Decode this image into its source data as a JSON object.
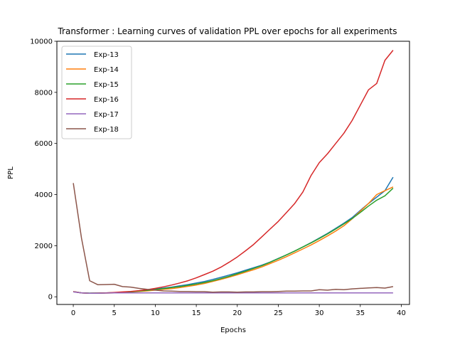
{
  "chart_data": {
    "type": "line",
    "title": "Transformer : Learning curves of validation PPL over epochs for all experiments",
    "xlabel": "Epochs",
    "ylabel": "PPL",
    "xlim": [
      -2,
      41
    ],
    "ylim": [
      -300,
      10000
    ],
    "xticks": [
      0,
      5,
      10,
      15,
      20,
      25,
      30,
      35,
      40
    ],
    "yticks": [
      0,
      2000,
      4000,
      6000,
      8000,
      10000
    ],
    "grid": false,
    "legend_position": "upper-left",
    "x": [
      0,
      1,
      2,
      3,
      4,
      5,
      6,
      7,
      8,
      9,
      10,
      11,
      12,
      13,
      14,
      15,
      16,
      17,
      18,
      19,
      20,
      21,
      22,
      23,
      24,
      25,
      26,
      27,
      28,
      29,
      30,
      31,
      32,
      33,
      34,
      35,
      36,
      37,
      38,
      39
    ],
    "series": [
      {
        "name": "Exp-13",
        "color": "#1f77b4",
        "values": [
          200,
          150,
          140,
          145,
          150,
          160,
          180,
          200,
          230,
          260,
          300,
          340,
          380,
          430,
          480,
          540,
          600,
          680,
          760,
          850,
          940,
          1040,
          1140,
          1240,
          1360,
          1500,
          1640,
          1790,
          1950,
          2120,
          2300,
          2480,
          2680,
          2880,
          3100,
          3380,
          3650,
          3900,
          4150,
          4680
        ]
      },
      {
        "name": "Exp-14",
        "color": "#ff7f0e",
        "values": [
          200,
          150,
          140,
          140,
          145,
          150,
          170,
          190,
          210,
          230,
          260,
          290,
          320,
          360,
          410,
          460,
          520,
          600,
          680,
          770,
          860,
          960,
          1060,
          1170,
          1300,
          1430,
          1570,
          1720,
          1870,
          2030,
          2200,
          2380,
          2570,
          2780,
          3050,
          3350,
          3650,
          4000,
          4150,
          4300
        ]
      },
      {
        "name": "Exp-15",
        "color": "#2ca02c",
        "values": [
          200,
          155,
          145,
          145,
          150,
          160,
          175,
          195,
          220,
          250,
          285,
          320,
          360,
          400,
          450,
          500,
          560,
          630,
          710,
          800,
          900,
          1000,
          1110,
          1220,
          1350,
          1490,
          1640,
          1790,
          1950,
          2110,
          2280,
          2460,
          2650,
          2850,
          3060,
          3300,
          3550,
          3780,
          3950,
          4250
        ]
      },
      {
        "name": "Exp-16",
        "color": "#d62728",
        "values": [
          200,
          150,
          140,
          145,
          155,
          170,
          190,
          210,
          240,
          280,
          330,
          390,
          460,
          540,
          630,
          740,
          870,
          1000,
          1160,
          1350,
          1560,
          1800,
          2050,
          2350,
          2650,
          2950,
          3300,
          3650,
          4100,
          4750,
          5250,
          5600,
          6000,
          6400,
          6900,
          7500,
          8100,
          8350,
          9250,
          9650
        ]
      },
      {
        "name": "Exp-17",
        "color": "#9467bd",
        "values": [
          190,
          150,
          140,
          140,
          145,
          150,
          150,
          150,
          150,
          150,
          150,
          150,
          150,
          150,
          150,
          150,
          150,
          150,
          150,
          150,
          150,
          150,
          150,
          150,
          150,
          150,
          150,
          150,
          150,
          150,
          150,
          150,
          150,
          150,
          150,
          150,
          150,
          150,
          150,
          150
        ]
      },
      {
        "name": "Exp-18",
        "color": "#8c564b",
        "values": [
          4450,
          2300,
          630,
          470,
          480,
          490,
          400,
          380,
          330,
          290,
          260,
          230,
          220,
          210,
          210,
          200,
          200,
          180,
          190,
          190,
          180,
          190,
          190,
          200,
          200,
          210,
          220,
          220,
          230,
          230,
          280,
          260,
          290,
          280,
          310,
          330,
          350,
          360,
          340,
          400
        ]
      }
    ]
  }
}
